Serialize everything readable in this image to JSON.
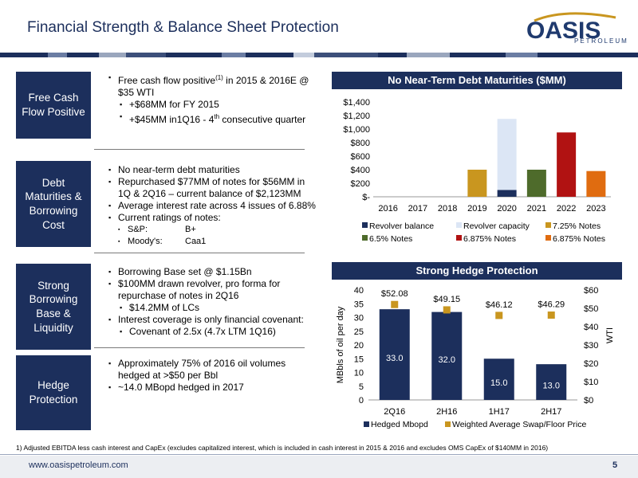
{
  "title": "Financial Strength & Balance Sheet Protection",
  "logo": {
    "name": "OASIS",
    "sub": "PETROLEUM"
  },
  "colors": {
    "navy": "#1c2f5c",
    "gold": "#c9961f",
    "green": "#4e6b2b",
    "red": "#b11212",
    "orange": "#e06c10",
    "light": "#dce6f5"
  },
  "sections": [
    {
      "label": "Free Cash Flow Positive",
      "bullets": [
        {
          "text": "Free cash flow positive",
          "sup": "(1)",
          "text2": " in 2015 & 2016E @ $35  WTI"
        },
        {
          "text": "+$68MM for FY 2015",
          "level": "sub"
        },
        {
          "text": "+$45MM in1Q16  - 4",
          "sup": "th",
          "text2": " consecutive quarter",
          "level": "sub"
        }
      ]
    },
    {
      "label": "Debt Maturities & Borrowing Cost",
      "bullets": [
        {
          "text": "No near-term debt maturities"
        },
        {
          "text": "Repurchased $77MM of notes for $56MM in 1Q & 2Q16 – current balance of $2,123MM"
        },
        {
          "text": "Average interest rate across 4 issues of 6.88%"
        },
        {
          "text": "Current ratings of notes:"
        },
        {
          "text": "S&P:",
          "value": "B+",
          "level": "sub2"
        },
        {
          "text": "Moody's:",
          "value": "Caa1",
          "level": "sub2"
        }
      ]
    },
    {
      "label": "Strong Borrowing Base & Liquidity",
      "bullets": [
        {
          "text": "Borrowing Base set @ $1.15Bn"
        },
        {
          "text": "$100MM drawn revolver, pro forma for repurchase of notes in 2Q16"
        },
        {
          "text": "$14.2MM of LCs",
          "level": "sub"
        },
        {
          "text": "Interest coverage is only financial covenant:"
        },
        {
          "text": "Covenant of 2.5x (4.7x LTM 1Q16)",
          "level": "sub"
        }
      ]
    },
    {
      "label": "Hedge Protection",
      "bullets": [
        {
          "text": "Approximately 75% of 2016 oil volumes hedged at >$50 per Bbl"
        },
        {
          "text": "~14.0 MBopd hedged in 2017"
        }
      ]
    }
  ],
  "chart_data": [
    {
      "type": "bar",
      "title": "No Near-Term Debt Maturities ($MM)",
      "categories": [
        "2016",
        "2017",
        "2018",
        "2019",
        "2020",
        "2021",
        "2022",
        "2023"
      ],
      "stacked": true,
      "yticks": [
        "$-",
        "$200",
        "$400",
        "$600",
        "$800",
        "$1,000",
        "$1,200",
        "$1,400"
      ],
      "ylim": [
        0,
        1400
      ],
      "series": [
        {
          "name": "Revolver balance",
          "color": "#1c2f5c",
          "values": [
            0,
            0,
            0,
            0,
            100,
            0,
            0,
            0
          ]
        },
        {
          "name": "Revolver capacity",
          "color": "#dce6f5",
          "values": [
            0,
            0,
            0,
            0,
            1050,
            0,
            0,
            0
          ]
        },
        {
          "name": "7.25% Notes",
          "color": "#c9961f",
          "values": [
            0,
            0,
            0,
            400,
            0,
            0,
            0,
            0
          ]
        },
        {
          "name": "6.5% Notes",
          "color": "#4e6b2b",
          "values": [
            0,
            0,
            0,
            0,
            0,
            400,
            0,
            0
          ]
        },
        {
          "name": "6.875% Notes",
          "color": "#b11212",
          "values": [
            0,
            0,
            0,
            0,
            0,
            0,
            950,
            0
          ]
        },
        {
          "name": "6.875% Notes",
          "color": "#e06c10",
          "values": [
            0,
            0,
            0,
            0,
            0,
            0,
            0,
            380
          ]
        }
      ],
      "legend": "bottom"
    },
    {
      "type": "bar",
      "title": "Strong Hedge Protection",
      "categories": [
        "2Q16",
        "2H16",
        "1H17",
        "2H17"
      ],
      "ylabel": "MBbls of oil per day",
      "y2label": "WTI",
      "ylim": [
        0,
        40
      ],
      "y2lim": [
        0,
        60
      ],
      "yticks": [
        "0",
        "5",
        "10",
        "15",
        "20",
        "25",
        "30",
        "35",
        "40"
      ],
      "y2ticks": [
        "$0",
        "$10",
        "$20",
        "$30",
        "$40",
        "$50",
        "$60"
      ],
      "series": [
        {
          "name": "Hedged Mbopd",
          "color": "#1c2f5c",
          "values": [
            33.0,
            32.0,
            15.0,
            13.0
          ],
          "labels": [
            "33.0",
            "32.0",
            "15.0",
            "13.0"
          ],
          "axis": "left",
          "mark": "bar"
        },
        {
          "name": "Weighted Average Swap/Floor Price",
          "color": "#c9961f",
          "values": [
            52.08,
            49.15,
            46.12,
            46.29
          ],
          "labels": [
            "$52.08",
            "$49.15",
            "$46.12",
            "$46.29"
          ],
          "axis": "right",
          "mark": "square"
        }
      ],
      "legend": "bottom"
    }
  ],
  "footnote": "1)    Adjusted EBITDA less cash interest and CapEx (excludes capitalized interest, which is included in cash interest in 2015 & 2016 and excludes OMS CapEx of $140MM in 2016)",
  "website": "www.oasispetroleum.com",
  "page_number": "5"
}
